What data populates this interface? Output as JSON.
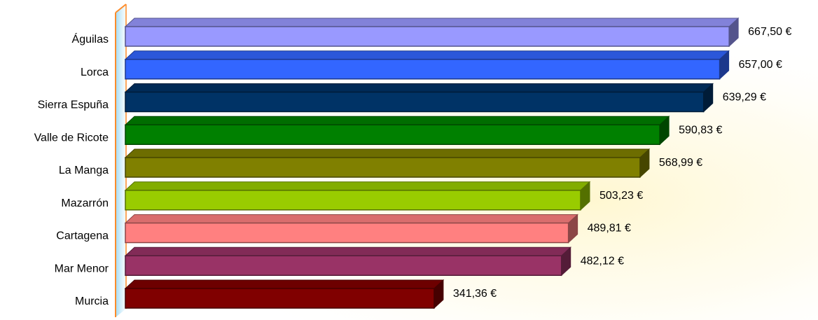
{
  "chart_data": {
    "type": "bar",
    "orientation": "horizontal",
    "style": "3d",
    "categories": [
      "Águilas",
      "Lorca",
      "Sierra Espuña",
      "Valle de Ricote",
      "La Manga",
      "Mazarrón",
      "Cartagena",
      "Mar Menor",
      "Murcia"
    ],
    "values": [
      667.5,
      657.0,
      639.29,
      590.83,
      568.99,
      503.23,
      489.81,
      482.12,
      341.36
    ],
    "value_labels": [
      "667,50 €",
      "657,00 €",
      "639,29 €",
      "590,83 €",
      "568,99 €",
      "503,23 €",
      "489,81 €",
      "482,12 €",
      "341,36 €"
    ],
    "bar_colors": [
      "#9999ff",
      "#3366ff",
      "#003366",
      "#008000",
      "#808000",
      "#99cc00",
      "#ff8080",
      "#993366",
      "#800000"
    ],
    "axis_color": "#ff8c2a",
    "title": "",
    "xlabel": "",
    "ylabel": "",
    "xlim": [
      0,
      700
    ],
    "grid": false,
    "legend": "none"
  }
}
